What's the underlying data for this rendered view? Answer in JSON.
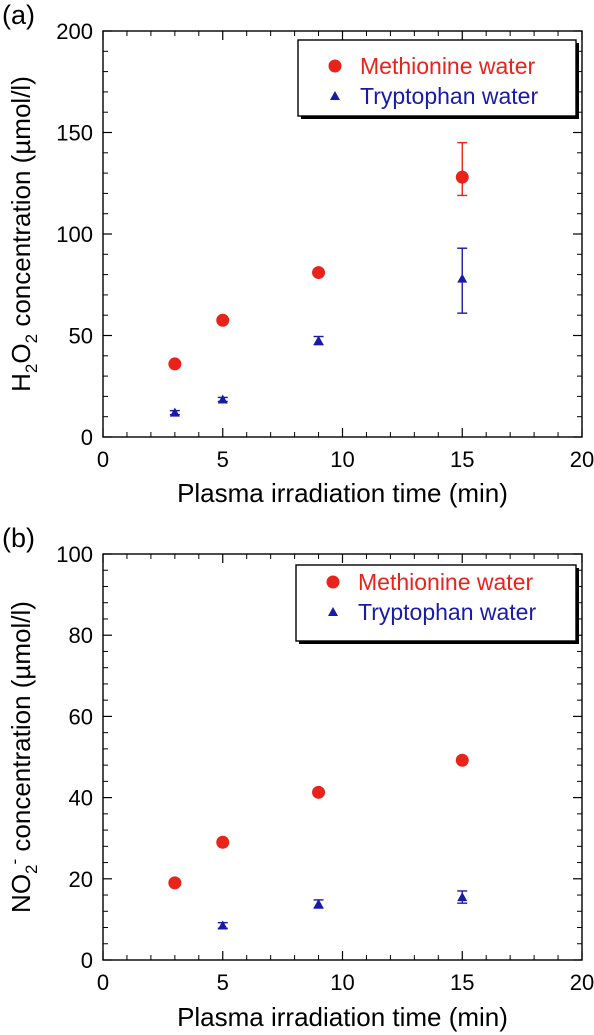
{
  "chart_data": [
    {
      "type": "scatter",
      "panel_label": "(a)",
      "xlabel": "Plasma irradiation time (min)",
      "ylabel": {
        "prefix": "H",
        "sub1": "2",
        "mid": "O",
        "sub2": "2",
        "suffix": " concentration (µmol/l)"
      },
      "xlim": [
        0,
        20
      ],
      "ylim": [
        0,
        200
      ],
      "x_ticks": [
        "0",
        "5",
        "10",
        "15",
        "20"
      ],
      "y_ticks": [
        "0",
        "50",
        "100",
        "150",
        "200"
      ],
      "grid": false,
      "legend_position": "top-right",
      "series": [
        {
          "name": "Methionine water",
          "color": "#e8231c",
          "marker": "circle",
          "x": [
            3,
            5,
            9,
            15
          ],
          "y": [
            36,
            57.5,
            81,
            128
          ],
          "err": [
            0,
            0,
            0,
            [
              9,
              17
            ]
          ]
        },
        {
          "name": "Tryptophan water",
          "color": "#1a1aa8",
          "marker": "triangle",
          "x": [
            3,
            5,
            9,
            15
          ],
          "y": [
            12,
            18.5,
            47.5,
            78
          ],
          "err": [
            1,
            1,
            2,
            [
              17,
              15
            ]
          ]
        }
      ]
    },
    {
      "type": "scatter",
      "panel_label": "(b)",
      "xlabel": "Plasma irradiation time (min)",
      "ylabel": {
        "prefix": "NO",
        "sub": "2",
        "sup": "-",
        "suffix": " concentration (µmol/l)"
      },
      "xlim": [
        0,
        20
      ],
      "ylim": [
        0,
        100
      ],
      "x_ticks": [
        "0",
        "5",
        "10",
        "15",
        "20"
      ],
      "y_ticks": [
        "0",
        "20",
        "40",
        "60",
        "80",
        "100"
      ],
      "grid": false,
      "legend_position": "top-right",
      "series": [
        {
          "name": "Methionine water",
          "color": "#e8231c",
          "marker": "circle",
          "x": [
            3,
            5,
            9,
            15
          ],
          "y": [
            19,
            29,
            41.3,
            49.2
          ],
          "err": [
            0,
            0,
            0,
            0
          ]
        },
        {
          "name": "Tryptophan water",
          "color": "#1a1aa8",
          "marker": "triangle",
          "x": [
            5,
            9,
            15
          ],
          "y": [
            8.5,
            13.8,
            15.5
          ],
          "err": [
            0.7,
            1,
            1.5
          ]
        }
      ]
    }
  ]
}
